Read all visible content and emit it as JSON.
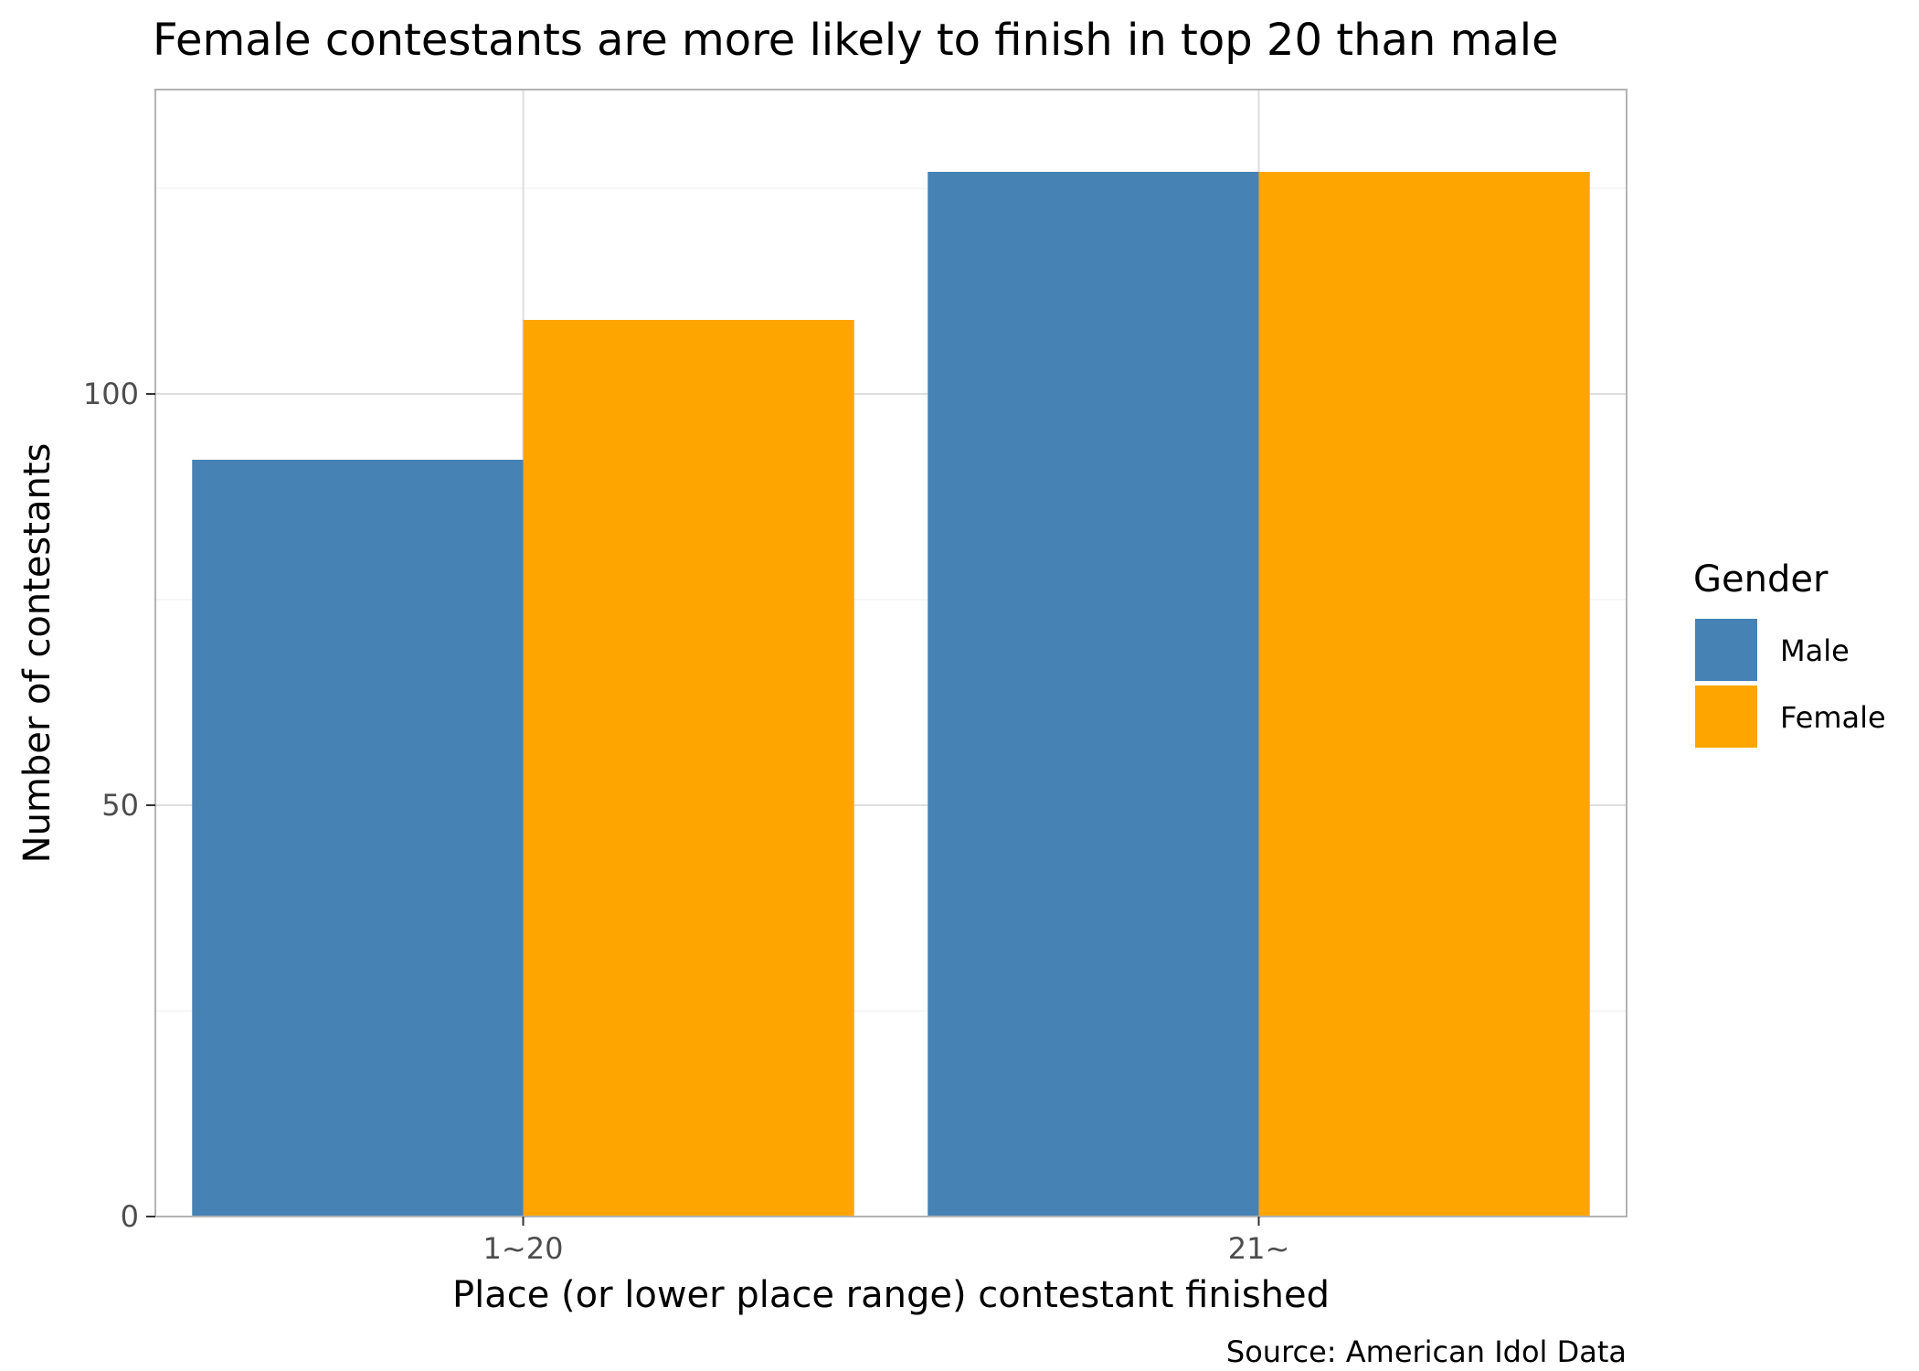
{
  "chart_data": {
    "type": "bar",
    "title": "Female contestants are more likely to finish in top 20 than male",
    "xlabel": "Place (or lower place range) contestant finished",
    "ylabel": "Number of contestants",
    "caption": "Source: American Idol Data",
    "categories": [
      "1~20",
      "21~"
    ],
    "series": [
      {
        "name": "Male",
        "color": "#4682b4",
        "values": [
          92,
          127
        ]
      },
      {
        "name": "Female",
        "color": "#ffa500",
        "values": [
          109,
          127
        ]
      }
    ],
    "ylim": [
      0,
      137
    ],
    "yticks": [
      0,
      50,
      100
    ],
    "yticks_minor": [
      25,
      75,
      125
    ],
    "legend": {
      "title": "Gender",
      "position": "right"
    },
    "grid": true
  }
}
